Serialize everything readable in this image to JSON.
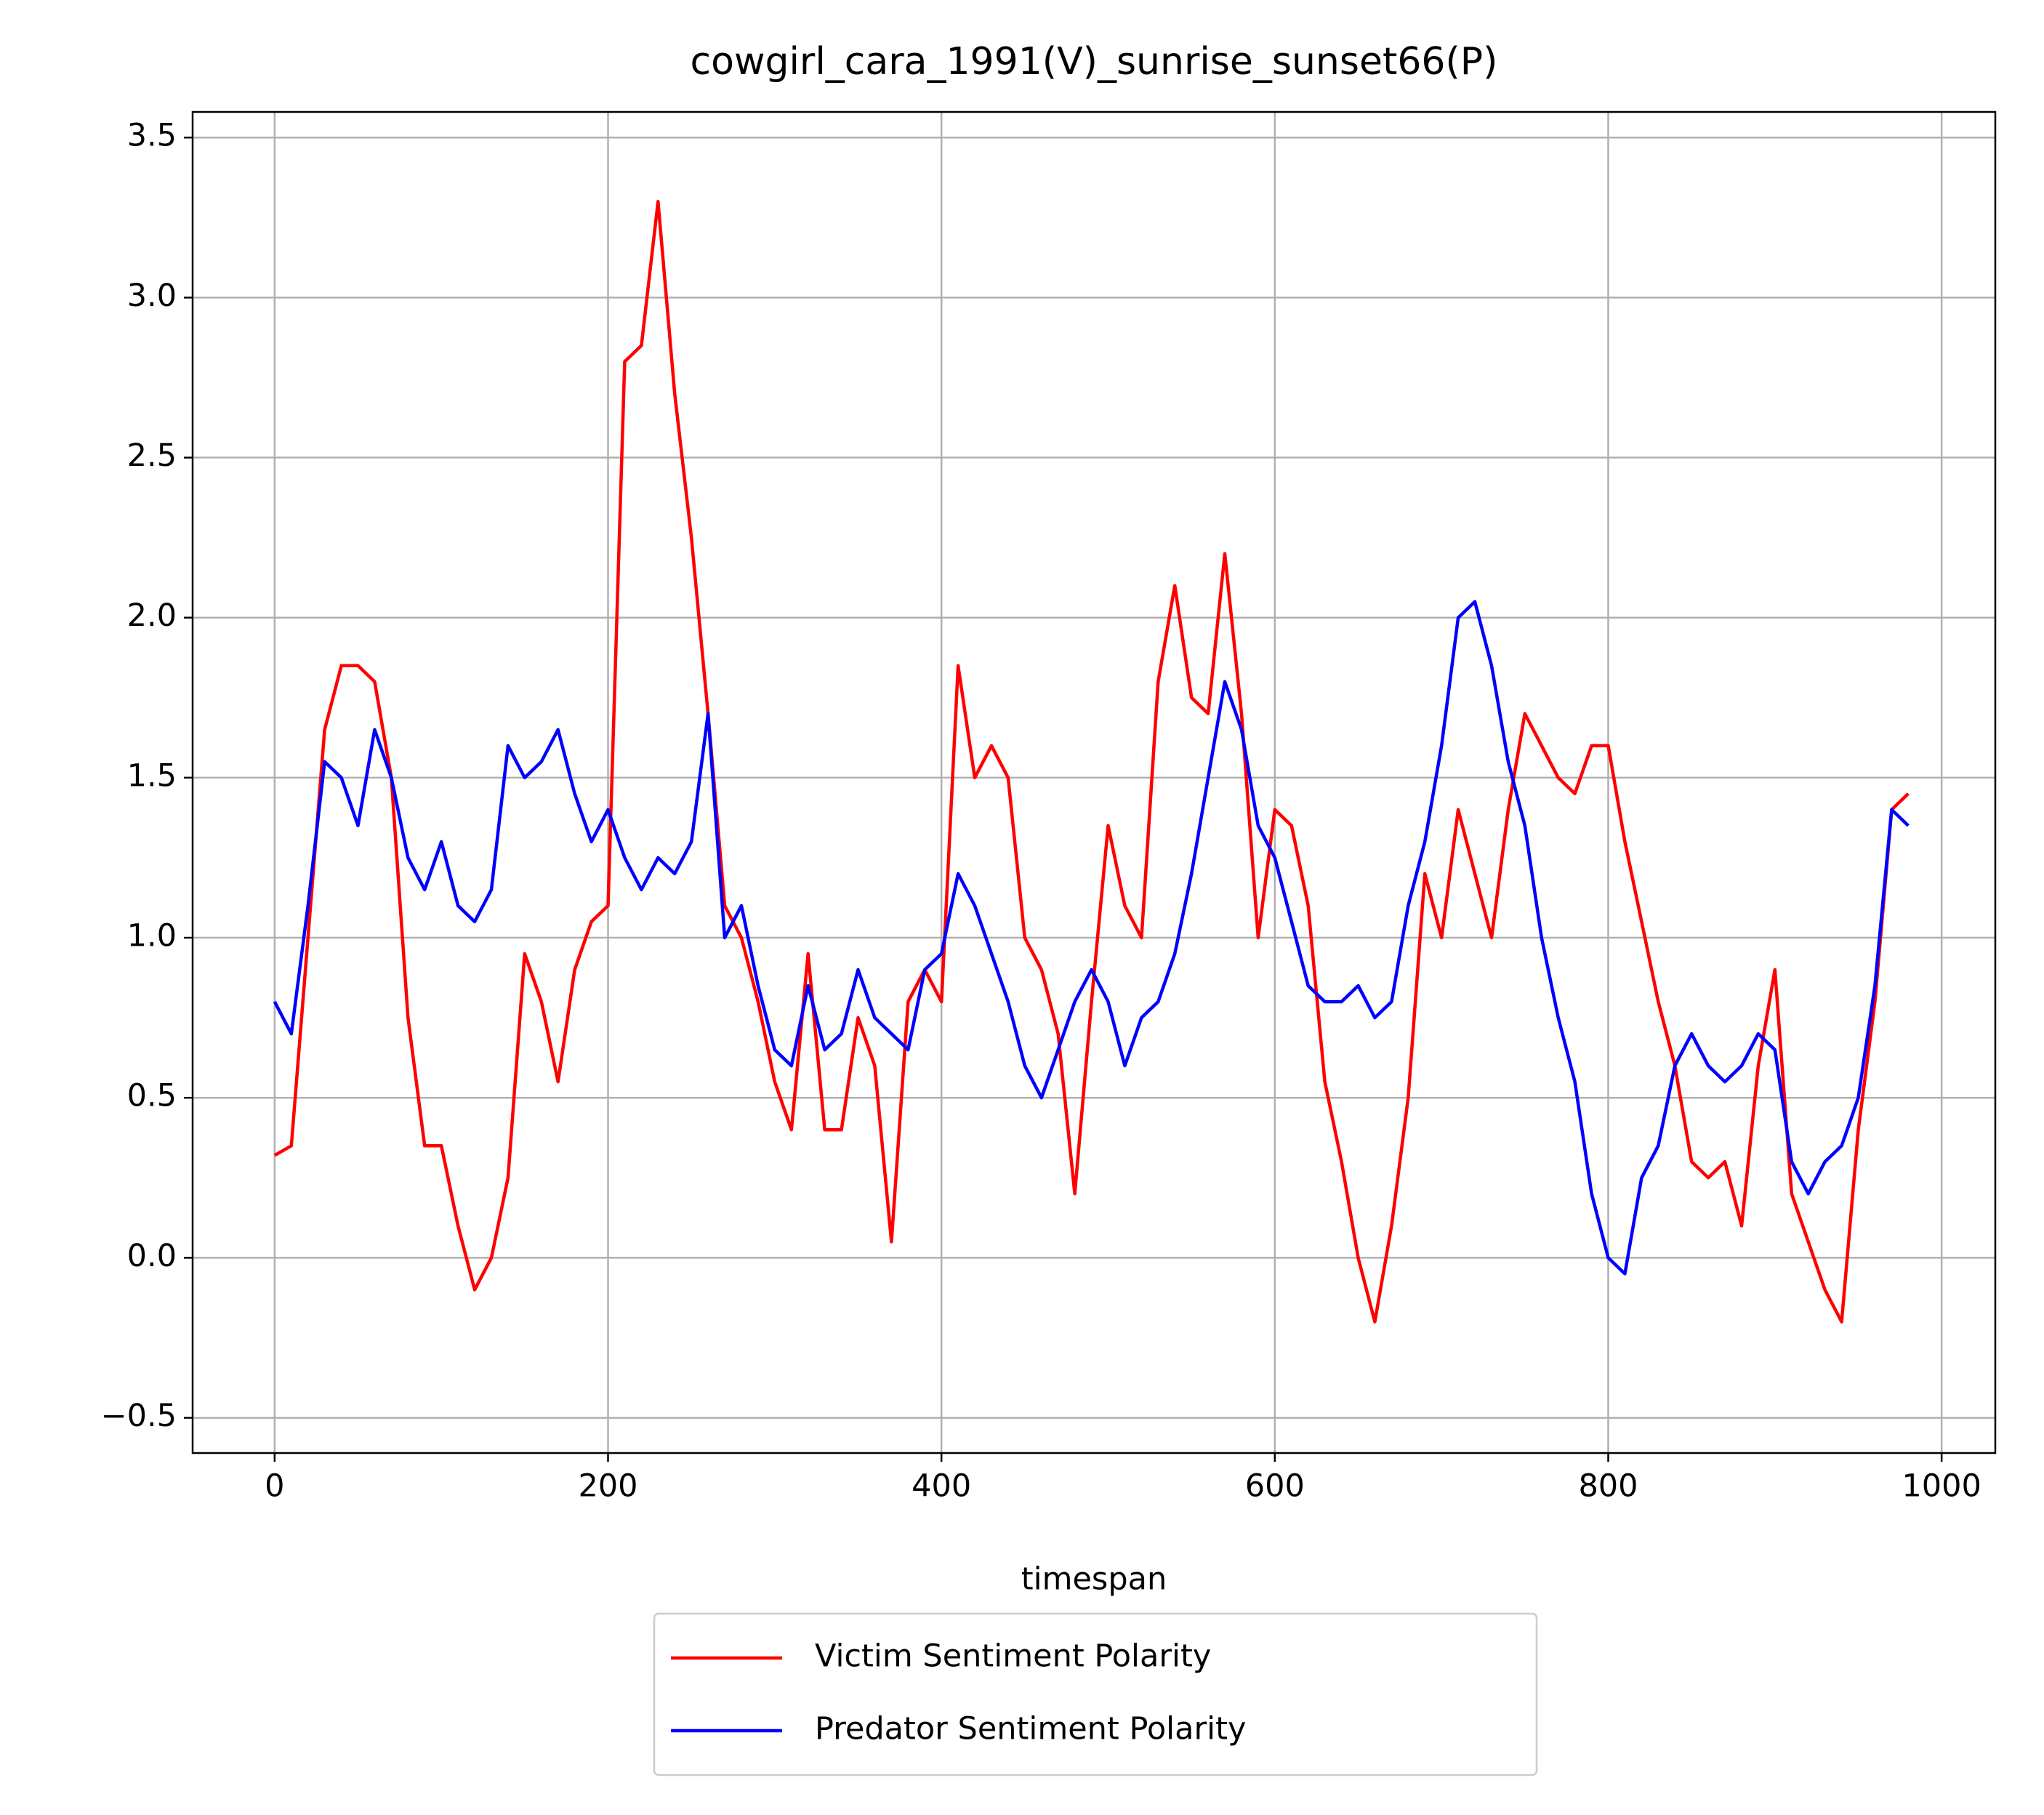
{
  "chart_data": {
    "type": "line",
    "title": "cowgirl_cara_1991(V)_sunrise_sunset66(P)",
    "x_label": "timespan",
    "x": [
      0,
      10,
      20,
      30,
      40,
      50,
      60,
      70,
      80,
      90,
      100,
      110,
      120,
      130,
      140,
      150,
      160,
      170,
      180,
      190,
      200,
      210,
      220,
      230,
      240,
      250,
      260,
      270,
      280,
      290,
      300,
      310,
      320,
      330,
      340,
      350,
      360,
      370,
      380,
      390,
      400,
      410,
      420,
      430,
      440,
      450,
      460,
      470,
      480,
      490,
      500,
      510,
      520,
      530,
      540,
      550,
      560,
      570,
      580,
      590,
      600,
      610,
      620,
      630,
      640,
      650,
      660,
      670,
      680,
      690,
      700,
      710,
      720,
      730,
      740,
      750,
      760,
      770,
      780,
      790,
      800,
      810,
      820,
      830,
      840,
      850,
      860,
      870,
      880,
      890,
      900,
      910,
      920,
      930,
      940,
      950,
      960,
      970,
      980
    ],
    "series": [
      {
        "name": "Victim Sentiment Polarity",
        "color": "#ff0000",
        "values": [
          0.32,
          0.35,
          1.0,
          1.65,
          1.85,
          1.85,
          1.8,
          1.5,
          0.75,
          0.35,
          0.35,
          0.1,
          -0.1,
          0.0,
          0.25,
          0.95,
          0.8,
          0.55,
          0.9,
          1.05,
          1.1,
          2.8,
          2.85,
          3.3,
          2.7,
          2.25,
          1.7,
          1.1,
          1.0,
          0.8,
          0.55,
          0.4,
          0.95,
          0.4,
          0.4,
          0.75,
          0.6,
          0.05,
          0.8,
          0.9,
          0.8,
          1.85,
          1.5,
          1.6,
          1.5,
          1.0,
          0.9,
          0.7,
          0.2,
          0.8,
          1.35,
          1.1,
          1.0,
          1.8,
          2.1,
          1.75,
          1.7,
          2.2,
          1.7,
          1.0,
          1.4,
          1.35,
          1.1,
          0.55,
          0.3,
          0.0,
          -0.2,
          0.1,
          0.5,
          1.2,
          1.0,
          1.4,
          1.2,
          1.0,
          1.4,
          1.7,
          1.6,
          1.5,
          1.45,
          1.6,
          1.6,
          1.3,
          1.05,
          0.8,
          0.6,
          0.3,
          0.25,
          0.3,
          0.1,
          0.6,
          0.9,
          0.2,
          0.05,
          -0.1,
          -0.2,
          0.4,
          0.8,
          1.4,
          1.45
        ]
      },
      {
        "name": "Predator Sentiment Polarity",
        "color": "#0000ff",
        "values": [
          0.8,
          0.7,
          1.1,
          1.55,
          1.5,
          1.35,
          1.65,
          1.5,
          1.25,
          1.15,
          1.3,
          1.1,
          1.05,
          1.15,
          1.6,
          1.5,
          1.55,
          1.65,
          1.45,
          1.3,
          1.4,
          1.25,
          1.15,
          1.25,
          1.2,
          1.3,
          1.7,
          1.0,
          1.1,
          0.85,
          0.65,
          0.6,
          0.85,
          0.65,
          0.7,
          0.9,
          0.75,
          0.7,
          0.65,
          0.9,
          0.95,
          1.2,
          1.1,
          0.95,
          0.8,
          0.6,
          0.5,
          0.65,
          0.8,
          0.9,
          0.8,
          0.6,
          0.75,
          0.8,
          0.95,
          1.2,
          1.5,
          1.8,
          1.65,
          1.35,
          1.25,
          1.05,
          0.85,
          0.8,
          0.8,
          0.85,
          0.75,
          0.8,
          1.1,
          1.3,
          1.6,
          2.0,
          2.05,
          1.85,
          1.55,
          1.35,
          1.0,
          0.75,
          0.55,
          0.2,
          0.0,
          -0.05,
          0.25,
          0.35,
          0.6,
          0.7,
          0.6,
          0.55,
          0.6,
          0.7,
          0.65,
          0.3,
          0.2,
          0.3,
          0.35,
          0.5,
          0.85,
          1.4,
          1.35
        ]
      }
    ],
    "xlim": [
      -49.2,
      1032.2
    ],
    "xticks": [
      0,
      200,
      400,
      600,
      800,
      1000
    ],
    "ylim": [
      -0.61,
      3.58
    ],
    "yticks": [
      {
        "value": -0.5,
        "label": "−0.5"
      },
      {
        "value": 0,
        "label": "0.0"
      },
      0.5,
      {
        "value": 1,
        "label": "1.0"
      },
      1.5,
      {
        "value": 2,
        "label": "2.0"
      },
      2.5,
      {
        "value": 3,
        "label": "3.0"
      },
      3.5
    ],
    "grid": true,
    "legend": "below"
  }
}
